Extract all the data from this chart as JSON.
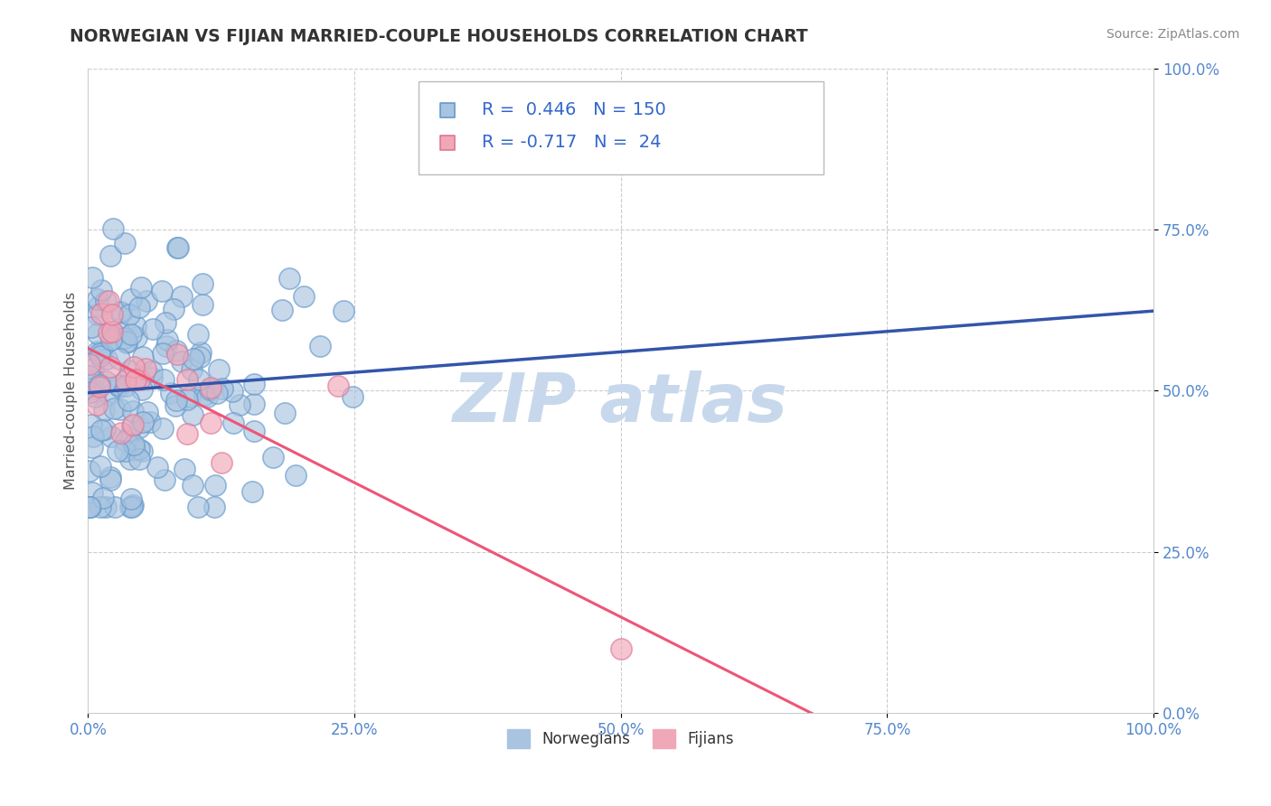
{
  "title": "NORWEGIAN VS FIJIAN MARRIED-COUPLE HOUSEHOLDS CORRELATION CHART",
  "source_text": "Source: ZipAtlas.com",
  "ylabel": "Married-couple Households",
  "xlabel": "",
  "xlim": [
    0.0,
    1.0
  ],
  "ylim": [
    0.0,
    1.0
  ],
  "xtick_labels": [
    "0.0%",
    "25.0%",
    "50.0%",
    "75.0%",
    "100.0%"
  ],
  "ytick_labels": [
    "0.0%",
    "25.0%",
    "50.0%",
    "75.0%",
    "100.0%"
  ],
  "norwegian_R": 0.446,
  "norwegian_N": 150,
  "fijian_R": -0.717,
  "fijian_N": 24,
  "norwegian_color": "#a8c4e0",
  "norwegian_edge_color": "#6699cc",
  "fijian_color": "#f0a8b8",
  "fijian_edge_color": "#dd7799",
  "trend_norwegian_color": "#3355aa",
  "trend_fijian_color": "#ee5577",
  "watermark_color": "#c8d8ec",
  "watermark_text": "ZIP atlas",
  "legend_norwegian": "Norwegians",
  "legend_fijian": "Fijians",
  "background_color": "#ffffff",
  "grid_color": "#cccccc",
  "title_color": "#333333",
  "axis_label_color": "#555555",
  "tick_label_color": "#5588cc",
  "legend_R_color": "#3366cc"
}
